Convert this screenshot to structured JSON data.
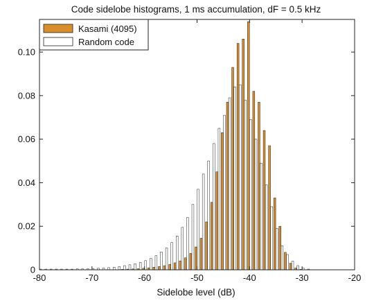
{
  "chart_data": {
    "type": "bar",
    "title": "Code sidelobe histograms, 1 ms accumulation, dF = 0.5 kHz",
    "xlabel": "Sidelobe level (dB)",
    "ylabel": "",
    "xlim": [
      -80,
      -20
    ],
    "ylim": [
      0,
      0.115
    ],
    "xticks": [
      -80,
      -70,
      -60,
      -50,
      -40,
      -30,
      -20
    ],
    "yticks": [
      0,
      0.02,
      0.04,
      0.06,
      0.08,
      0.1
    ],
    "ytick_labels": [
      "0",
      "0.02",
      "0.04",
      "0.06",
      "0.08",
      "0.10"
    ],
    "grid": false,
    "legend_position": "top-left",
    "bin_width": 1,
    "bin_centers": [
      -80,
      -79,
      -78,
      -77,
      -76,
      -75,
      -74,
      -73,
      -72,
      -71,
      -70,
      -69,
      -68,
      -67,
      -66,
      -65,
      -64,
      -63,
      -62,
      -61,
      -60,
      -59,
      -58,
      -57,
      -56,
      -55,
      -54,
      -53,
      -52,
      -51,
      -50,
      -49,
      -48,
      -47,
      -46,
      -45,
      -44,
      -43,
      -42,
      -41,
      -40,
      -39,
      -38,
      -37,
      -36,
      -35,
      -34,
      -33,
      -32,
      -31,
      -30,
      -29,
      -28,
      -27,
      -26,
      -25,
      -24,
      -23,
      -22,
      -21,
      -20
    ],
    "series": [
      {
        "name": "Kasami (4095)",
        "color": "#d88e2c",
        "values": [
          0,
          0,
          0,
          0,
          0,
          0,
          0,
          0,
          0,
          0,
          0,
          0,
          0,
          0,
          0,
          0,
          0.0002,
          0.0003,
          0.0004,
          0.0005,
          0.0007,
          0.0009,
          0.0012,
          0.0015,
          0.0019,
          0.0025,
          0.0032,
          0.0041,
          0.0055,
          0.0075,
          0.0105,
          0.0145,
          0.022,
          0.031,
          0.045,
          0.063,
          0.077,
          0.093,
          0.104,
          0.106,
          0.114,
          0.082,
          0.077,
          0.064,
          0.057,
          0.033,
          0.02,
          0.008,
          0.003,
          0.0008,
          0.0002,
          0,
          0,
          0,
          0,
          0,
          0,
          0,
          0,
          0,
          0
        ]
      },
      {
        "name": "Random code",
        "color": "#ffffff",
        "values": [
          0.0003,
          0.0003,
          0.0003,
          0.0003,
          0.0003,
          0.0003,
          0.0003,
          0.0004,
          0.0004,
          0.0005,
          0.0006,
          0.0007,
          0.0008,
          0.001,
          0.0012,
          0.0015,
          0.0019,
          0.0023,
          0.0028,
          0.0034,
          0.0042,
          0.0052,
          0.0065,
          0.0082,
          0.01,
          0.0125,
          0.0155,
          0.0195,
          0.024,
          0.03,
          0.037,
          0.044,
          0.05,
          0.058,
          0.065,
          0.071,
          0.079,
          0.084,
          0.085,
          0.078,
          0.069,
          0.06,
          0.049,
          0.039,
          0.029,
          0.019,
          0.011,
          0.007,
          0.004,
          0.0019,
          0.0008,
          0.0003,
          0,
          0,
          0,
          0,
          0,
          0,
          0,
          0,
          0
        ]
      }
    ]
  }
}
